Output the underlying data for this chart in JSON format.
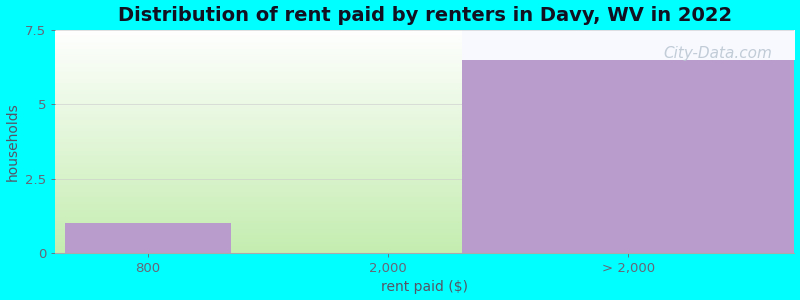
{
  "title": "Distribution of rent paid by renters in Davy, WV in 2022",
  "xlabel": "rent paid ($)",
  "ylabel": "households",
  "categories": [
    "800",
    "2,000",
    "> 2,000"
  ],
  "values": [
    1.0,
    0.0,
    6.5
  ],
  "bar_color": "#b99ccc",
  "bg_color": "#00ffff",
  "ylim": [
    0,
    7.5
  ],
  "yticks": [
    0,
    2.5,
    5.0,
    7.5
  ],
  "title_fontsize": 14,
  "axis_label_fontsize": 10,
  "tick_fontsize": 9.5,
  "watermark": "City-Data.com",
  "watermark_color": "#b8c4d0",
  "watermark_fontsize": 11,
  "green_left": "#c5e8b0",
  "green_right": "#f5fff5",
  "white_top": "#ffffff"
}
